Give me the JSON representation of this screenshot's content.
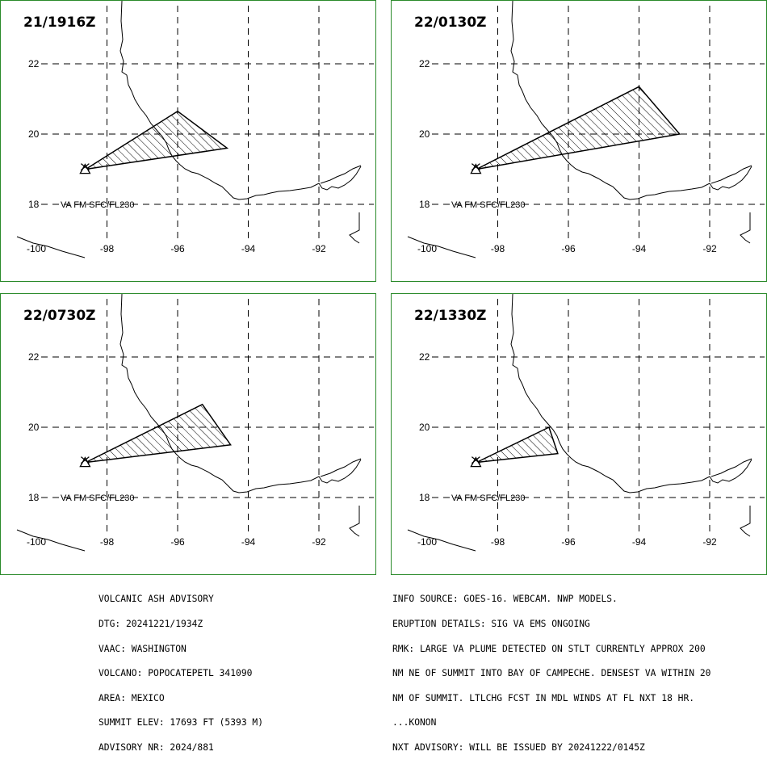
{
  "panels": [
    {
      "time": "21/1916Z",
      "label": "VA FM SFC/FL230",
      "polygon": [
        [
          -98.6,
          19.0
        ],
        [
          -96.0,
          20.65
        ],
        [
          -94.6,
          19.6
        ],
        [
          -98.6,
          19.0
        ]
      ]
    },
    {
      "time": "22/0130Z",
      "label": "VA FM SFC/FL230",
      "polygon": [
        [
          -98.6,
          19.0
        ],
        [
          -94.0,
          21.35
        ],
        [
          -92.85,
          20.0
        ],
        [
          -98.6,
          19.0
        ]
      ]
    },
    {
      "time": "22/0730Z",
      "label": "VA FM SFC/FL230",
      "polygon": [
        [
          -98.6,
          19.0
        ],
        [
          -95.3,
          20.65
        ],
        [
          -94.5,
          19.5
        ],
        [
          -98.6,
          19.0
        ]
      ]
    },
    {
      "time": "22/1330Z",
      "label": "VA FM SFC/FL230",
      "polygon": [
        [
          -98.6,
          19.0
        ],
        [
          -96.55,
          20.0
        ],
        [
          -96.3,
          19.25
        ],
        [
          -98.6,
          19.0
        ]
      ]
    }
  ],
  "map": {
    "volcano": [
      -98.62,
      19.02
    ],
    "lat_ticks": [
      "22",
      "20",
      "18"
    ],
    "lon_ticks": [
      "-100",
      "-98",
      "-96",
      "-94",
      "-92"
    ],
    "lat_values": [
      22,
      20,
      18
    ],
    "lon_values": [
      -100,
      -98,
      -96,
      -94,
      -92
    ]
  },
  "advisory_left": {
    "l1": "VOLCANIC ASH ADVISORY",
    "l2": "DTG: 20241221/1934Z",
    "l3": "VAAC: WASHINGTON",
    "l4": "VOLCANO: POPOCATEPETL 341090",
    "l5": "AREA: MEXICO",
    "l6": "SUMMIT ELEV: 17693 FT (5393 M)",
    "l7": "ADVISORY NR: 2024/881"
  },
  "advisory_right": {
    "l1": "INFO SOURCE: GOES-16. WEBCAM. NWP MODELS.",
    "l2": "ERUPTION DETAILS: SIG VA EMS ONGOING",
    "l3": "RMK: LARGE VA PLUME DETECTED ON STLT CURRENTLY APPROX 200",
    "l4": "NM NE OF SUMMIT INTO BAY OF CAMPECHE. DENSEST VA WITHIN 20",
    "l5": "NM OF SUMMIT. LTLCHG FCST IN MDL WINDS AT FL NXT 18 HR.",
    "l6": "...KONON",
    "l7": "NXT ADVISORY: WILL BE ISSUED BY 20241222/0145Z"
  }
}
